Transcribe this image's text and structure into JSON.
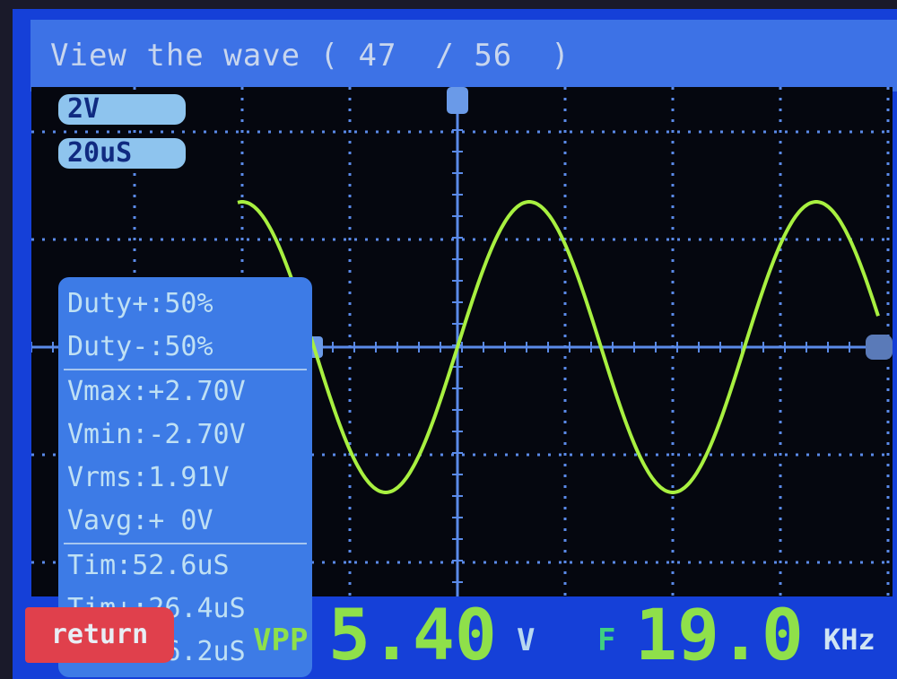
{
  "title": "View the wave ( 47  / 56  )",
  "scale": {
    "volts_per_div": "2V",
    "time_per_div": "20uS"
  },
  "measurements": {
    "group1": [
      "Duty+:50%",
      "Duty-:50%"
    ],
    "group2": [
      "Vmax:+2.70V",
      "Vmin:-2.70V",
      "Vrms:1.91V",
      "Vavg:+ 0V"
    ],
    "group3": [
      "Tim:52.6uS",
      "Tim+:26.4uS",
      "Tim-:26.2uS"
    ]
  },
  "bottom": {
    "return_label": "return",
    "vpp_label": "VPP",
    "vpp_value": "5.40",
    "vpp_unit": "V",
    "freq_label": "F",
    "freq_value": "19.0",
    "freq_unit": "KHz"
  },
  "colors": {
    "trace": "#a8f040",
    "grid": "#5a8ae8",
    "panel": "#3d7be6",
    "return": "#e0404c"
  }
}
